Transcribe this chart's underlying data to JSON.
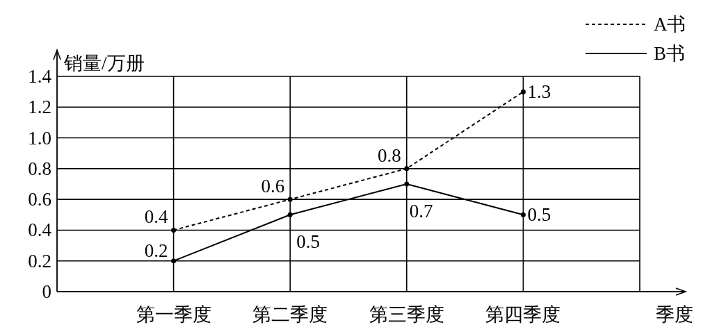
{
  "chart_data": {
    "type": "line",
    "ylabel": "销量/万册",
    "xlabel": "季度",
    "categories": [
      "第一季度",
      "第二季度",
      "第三季度",
      "第四季度"
    ],
    "series": [
      {
        "name": "A书",
        "color": "#000000",
        "line_style": "dashed",
        "values": [
          0.4,
          0.6,
          0.8,
          1.3
        ]
      },
      {
        "name": "B书",
        "color": "#000000",
        "line_style": "solid",
        "values": [
          0.2,
          0.5,
          0.7,
          0.5
        ]
      }
    ],
    "ylim": [
      0,
      1.4
    ],
    "yticks": [
      0,
      0.2,
      0.4,
      0.6,
      0.8,
      {
        "value": 1,
        "label": "1.0"
      },
      1.2,
      1.4
    ],
    "grid": true,
    "legend": "top right",
    "marker": "circle",
    "data_labels": true
  }
}
